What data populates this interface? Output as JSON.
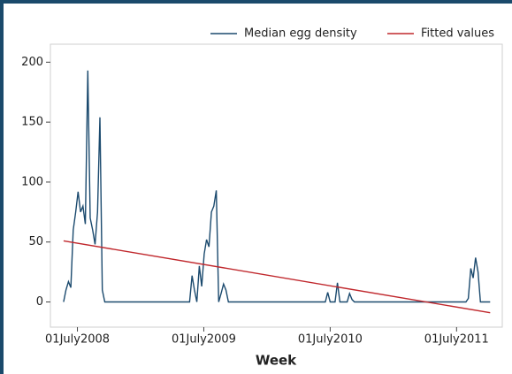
{
  "chart_data": {
    "type": "line",
    "xlabel": "Week",
    "series": [
      {
        "name": "Median egg density",
        "color": "#1b4a6e",
        "x": [
          "2008-05-22",
          "2008-05-29",
          "2008-06-05",
          "2008-06-12",
          "2008-06-19",
          "2008-06-26",
          "2008-07-03",
          "2008-07-10",
          "2008-07-17",
          "2008-07-24",
          "2008-07-31",
          "2008-08-07",
          "2008-08-14",
          "2008-08-21",
          "2008-08-28",
          "2008-09-04",
          "2008-09-11",
          "2008-09-18",
          "2009-05-21",
          "2009-05-28",
          "2009-06-04",
          "2009-06-11",
          "2009-06-18",
          "2009-06-25",
          "2009-07-02",
          "2009-07-09",
          "2009-07-16",
          "2009-07-23",
          "2009-07-30",
          "2009-08-06",
          "2009-08-13",
          "2009-08-20",
          "2009-08-27",
          "2009-09-03",
          "2009-09-10",
          "2010-06-17",
          "2010-06-24",
          "2010-07-01",
          "2010-07-15",
          "2010-07-22",
          "2010-07-29",
          "2010-08-19",
          "2010-08-26",
          "2010-09-02",
          "2010-09-09",
          "2011-07-28",
          "2011-08-04",
          "2011-08-11",
          "2011-08-18",
          "2011-08-25",
          "2011-09-01",
          "2011-09-08",
          "2011-10-06"
        ],
        "values": [
          0,
          10,
          17,
          12,
          60,
          75,
          92,
          75,
          80,
          65,
          193,
          70,
          60,
          48,
          75,
          154,
          10,
          0,
          0,
          22,
          10,
          0,
          30,
          13,
          40,
          52,
          46,
          75,
          80,
          93,
          0,
          7,
          15,
          10,
          0,
          0,
          8,
          0,
          0,
          16,
          0,
          0,
          7,
          2,
          0,
          0,
          3,
          28,
          20,
          37,
          25,
          0,
          0
        ]
      },
      {
        "name": "Fitted values",
        "color": "#c0282d",
        "x": [
          "2008-05-22",
          "2011-10-06"
        ],
        "values": [
          51,
          -9
        ]
      }
    ],
    "xlim": [
      "2008-04-14",
      "2011-11-10"
    ],
    "xticks": [
      {
        "value": "2008-07-01",
        "label": "01July2008"
      },
      {
        "value": "2009-07-01",
        "label": "01July2009"
      },
      {
        "value": "2010-07-01",
        "label": "01July2010"
      },
      {
        "value": "2011-07-01",
        "label": "01July2011"
      }
    ],
    "ylim": [
      -21,
      215
    ],
    "yticks": [
      0,
      50,
      100,
      150,
      200
    ],
    "grid": false,
    "legend": "top-right"
  }
}
